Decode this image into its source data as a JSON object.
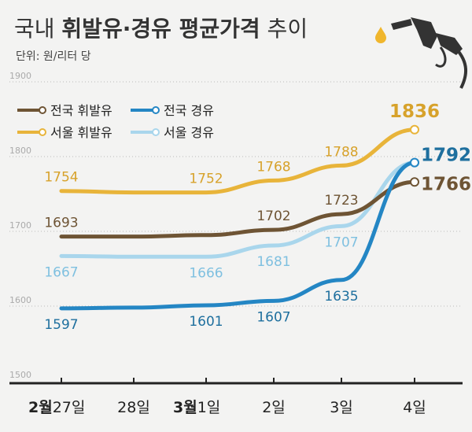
{
  "header": {
    "title_part1": "국내 ",
    "title_part2": "휘발유·경유 평균가격",
    "title_part3": " 추이",
    "unit": "단위: 원/리터 당"
  },
  "colors": {
    "background": "#f3f3f2",
    "national_gasoline": "#6e5434",
    "seoul_gasoline": "#e8b43a",
    "national_diesel": "#2486c4",
    "seoul_diesel": "#a9d6ec",
    "text": "#333333",
    "grid": "#bbbbbb",
    "axis": "#222222",
    "pump": "#333333",
    "drop": "#f0b62d"
  },
  "icons": {
    "pump": "fuel-pump-nozzle-icon",
    "drop": "fuel-drop-icon"
  },
  "chart_data": {
    "type": "line",
    "title": "국내 휘발유·경유 평균가격 추이",
    "unit_label": "단위: 원/리터 당",
    "xlabel": "",
    "ylabel": "",
    "ylim": [
      1500,
      1900
    ],
    "yticks": [
      1500,
      1600,
      1700,
      1800,
      1900
    ],
    "grid": true,
    "legend_position": "top-left",
    "categories": [
      {
        "month": "2월",
        "day": "27일"
      },
      {
        "month": "",
        "day": "28일"
      },
      {
        "month": "3월",
        "day": "1일"
      },
      {
        "month": "",
        "day": "2일"
      },
      {
        "month": "",
        "day": "3일"
      },
      {
        "month": "",
        "day": "4일"
      }
    ],
    "series": [
      {
        "id": "seoul-gasoline",
        "name": "서울 휘발유",
        "color": "#e8b43a",
        "values": [
          1754,
          1752,
          1752,
          1768,
          1788,
          1836
        ],
        "labels": [
          "1754",
          "",
          "1752",
          "1768",
          "1788",
          "1836"
        ]
      },
      {
        "id": "national-gasoline",
        "name": "전국 휘발유",
        "color": "#6e5434",
        "values": [
          1693,
          1693,
          1695,
          1702,
          1723,
          1766
        ],
        "labels": [
          "1693",
          "",
          "",
          "1702",
          "1723",
          "1766"
        ]
      },
      {
        "id": "seoul-diesel",
        "name": "서울 경유",
        "color": "#a9d6ec",
        "values": [
          1667,
          1666,
          1666,
          1681,
          1707,
          1792
        ],
        "labels": [
          "1667",
          "",
          "1666",
          "1681",
          "1707",
          ""
        ]
      },
      {
        "id": "national-diesel",
        "name": "전국 경유",
        "color": "#2486c4",
        "values": [
          1597,
          1598,
          1601,
          1607,
          1635,
          1792
        ],
        "labels": [
          "1597",
          "",
          "1601",
          "1607",
          "1635",
          "1792"
        ]
      }
    ],
    "legend": [
      {
        "name": "전국 휘발유",
        "color": "#6e5434"
      },
      {
        "name": "전국 경유",
        "color": "#2486c4"
      },
      {
        "name": "서울 휘발유",
        "color": "#e8b43a"
      },
      {
        "name": "서울 경유",
        "color": "#a9d6ec"
      }
    ]
  }
}
